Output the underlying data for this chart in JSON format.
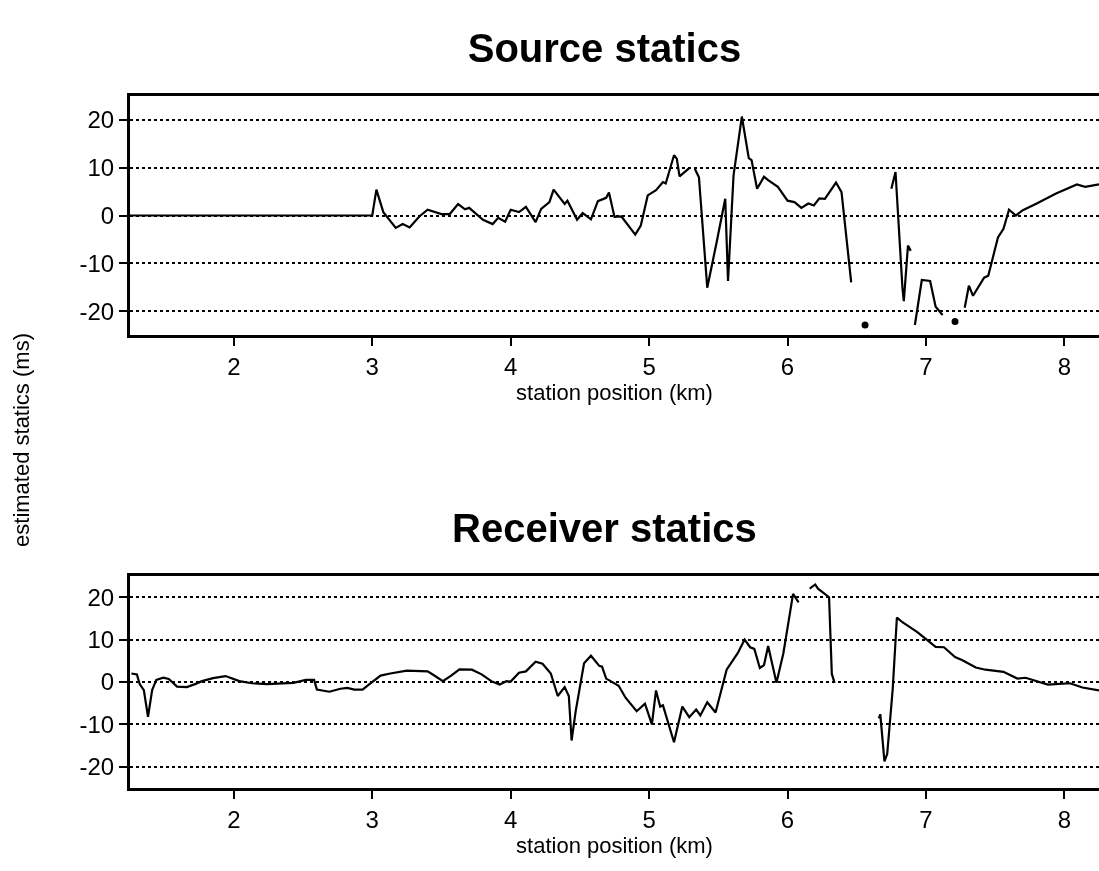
{
  "chart_data": [
    {
      "type": "line",
      "title": "Source statics",
      "xlabel": "station position (km)",
      "ylabel": "estimated statics (ms)",
      "xlim": [
        1.25,
        8.25
      ],
      "xticks": [
        2,
        3,
        4,
        5,
        6,
        7,
        8
      ],
      "ylim": [
        -25,
        25
      ],
      "yticks": [
        -20,
        -10,
        0,
        10,
        20
      ],
      "grid": "y",
      "marker": "none",
      "series": [
        {
          "color": "#000000",
          "x": [
            1.25,
            3.0,
            3.03,
            3.08,
            3.17,
            3.22,
            3.27,
            3.34,
            3.4,
            3.5,
            3.56,
            3.62,
            3.67,
            3.7,
            3.8,
            3.87,
            3.91,
            3.96,
            4.0,
            4.06,
            4.11,
            4.18,
            4.22,
            4.28,
            4.31,
            4.39,
            4.41,
            4.48,
            4.52,
            4.58,
            4.63,
            4.69,
            4.71,
            4.75,
            4.8,
            4.9,
            4.94,
            4.99,
            5.05,
            5.1,
            5.12,
            5.18,
            5.2,
            5.22,
            5.29,
            5.3,
            5.33,
            5.36,
            5.42,
            5.49,
            5.55,
            5.57,
            5.61,
            5.67,
            5.72,
            5.74,
            5.78,
            5.83,
            5.86,
            5.93,
            6.0,
            6.05,
            6.1,
            6.15,
            6.19,
            6.23,
            6.27,
            6.35,
            6.39,
            6.46,
            6.49,
            6.56,
            6.58,
            6.65,
            6.75,
            6.78,
            6.83,
            6.84,
            6.87,
            6.89,
            6.91,
            6.92,
            6.97,
            7.03,
            7.07,
            7.12,
            7.17,
            7.21,
            7.23,
            7.28,
            7.31,
            7.34,
            7.42,
            7.45,
            7.52,
            7.56,
            7.6,
            7.65,
            7.7,
            7.8,
            7.94,
            8.09,
            8.15,
            8.25
          ],
          "values": [
            0,
            0,
            5.4,
            0.7,
            -2.6,
            -1.8,
            -2.5,
            -0.2,
            1.2,
            0.3,
            0.3,
            2.4,
            1.3,
            1.6,
            -0.9,
            -1.8,
            -0.5,
            -1.3,
            1.2,
            0.7,
            1.8,
            -1.4,
            1.4,
            2.8,
            5.4,
            2.4,
            3.1,
            -0.9,
            0.5,
            -0.8,
            3.0,
            3.7,
            4.8,
            -0.3,
            -0.2,
            -4.0,
            -2.1,
            4.2,
            5.3,
            7.0,
            6.7,
            12.6,
            11.9,
            8.2,
            9.9,
            null,
            9.8,
            8.0,
            -15.1,
            -5.3,
            3.5,
            -13.7,
            8.4,
            20.7,
            12.0,
            11.6,
            5.6,
            8.1,
            7.4,
            6.0,
            3.1,
            2.8,
            1.6,
            2.5,
            2.1,
            3.6,
            3.5,
            6.9,
            4.9,
            -14.0,
            null,
            -22.9,
            null,
            null,
            5.6,
            9.1,
            -15.1,
            -17.9,
            -6.3,
            -7.4,
            null,
            -22.9,
            -13.5,
            -13.7,
            -19.1,
            -20.8,
            null,
            -22.2,
            null,
            -19.3,
            -14.7,
            -16.8,
            -13.0,
            -12.6,
            -4.6,
            -2.8,
            1.2,
            0.0,
            1.1,
            2.5,
            4.6,
            6.5,
            6.0,
            6.5
          ]
        }
      ]
    },
    {
      "type": "line",
      "title": "Receiver statics",
      "xlabel": "station position (km)",
      "xlim": [
        1.25,
        8.25
      ],
      "xticks": [
        2,
        3,
        4,
        5,
        6,
        7,
        8
      ],
      "ylim": [
        -25,
        25
      ],
      "yticks": [
        -20,
        -10,
        0,
        10,
        20
      ],
      "grid": "y",
      "marker": "none",
      "series": [
        {
          "color": "#000000",
          "x": [
            1.26,
            1.3,
            1.32,
            1.35,
            1.38,
            1.41,
            1.44,
            1.49,
            1.53,
            1.59,
            1.66,
            1.72,
            1.77,
            1.85,
            1.94,
            2.04,
            2.13,
            2.24,
            2.43,
            2.52,
            2.58,
            2.6,
            2.69,
            2.77,
            2.82,
            2.87,
            2.93,
            2.98,
            3.06,
            3.13,
            3.25,
            3.4,
            3.44,
            3.51,
            3.57,
            3.63,
            3.72,
            3.79,
            3.86,
            3.92,
            3.97,
            4.0,
            4.06,
            4.11,
            4.18,
            4.23,
            4.29,
            4.34,
            4.39,
            4.42,
            4.44,
            4.47,
            4.53,
            4.58,
            4.64,
            4.66,
            4.69,
            4.78,
            4.83,
            4.91,
            4.97,
            5.02,
            5.05,
            5.08,
            5.1,
            5.18,
            5.24,
            5.29,
            5.34,
            5.37,
            5.42,
            5.48,
            5.56,
            5.64,
            5.69,
            5.73,
            5.76,
            5.8,
            5.83,
            5.86,
            5.92,
            5.97,
            6.04,
            6.08,
            6.12,
            6.16,
            6.2,
            6.22,
            6.3,
            6.32,
            6.34,
            6.38,
            6.62,
            6.66,
            6.67,
            6.7,
            6.72,
            6.76,
            6.79,
            6.83,
            6.94,
            7.07,
            7.13,
            7.21,
            7.26,
            7.36,
            7.43,
            7.56,
            7.66,
            7.72,
            7.88,
            8.04,
            8.13,
            8.25
          ],
          "values": [
            2.0,
            1.8,
            -0.5,
            -1.9,
            -8.2,
            -1.9,
            0.5,
            1.0,
            0.7,
            -1.1,
            -1.2,
            -0.5,
            0.2,
            0.9,
            1.4,
            0.2,
            -0.3,
            -0.5,
            -0.2,
            0.5,
            0.5,
            -1.8,
            -2.3,
            -1.6,
            -1.4,
            -1.8,
            -1.8,
            -0.5,
            1.5,
            2.0,
            2.7,
            2.5,
            1.7,
            0.2,
            1.5,
            3.0,
            2.9,
            1.8,
            0.2,
            -0.6,
            0.2,
            0.1,
            2.2,
            2.5,
            4.8,
            4.3,
            2.0,
            -3.3,
            -1.2,
            -3.3,
            -13.8,
            -6.8,
            4.4,
            6.2,
            3.8,
            3.6,
            0.8,
            -0.9,
            -3.7,
            -6.9,
            -5.1,
            -10.0,
            -2.0,
            -5.8,
            -5.5,
            -14.2,
            -5.8,
            -8.3,
            -6.5,
            -7.9,
            -4.8,
            -7.2,
            2.9,
            6.8,
            10.0,
            8.2,
            7.8,
            3.3,
            4.0,
            8.5,
            -0.2,
            6.8,
            20.8,
            18.8,
            null,
            22,
            23,
            22,
            20,
            1.9,
            -0.2,
            null,
            null,
            -8.6,
            -7.6,
            -18.7,
            -17.0,
            -1.6,
            15.2,
            14.1,
            11.7,
            8.3,
            8.2,
            5.9,
            5.2,
            3.4,
            2.9,
            2.4,
            0.8,
            1.0,
            -0.6,
            -0.3,
            -1.3,
            -2.0
          ]
        }
      ]
    }
  ]
}
